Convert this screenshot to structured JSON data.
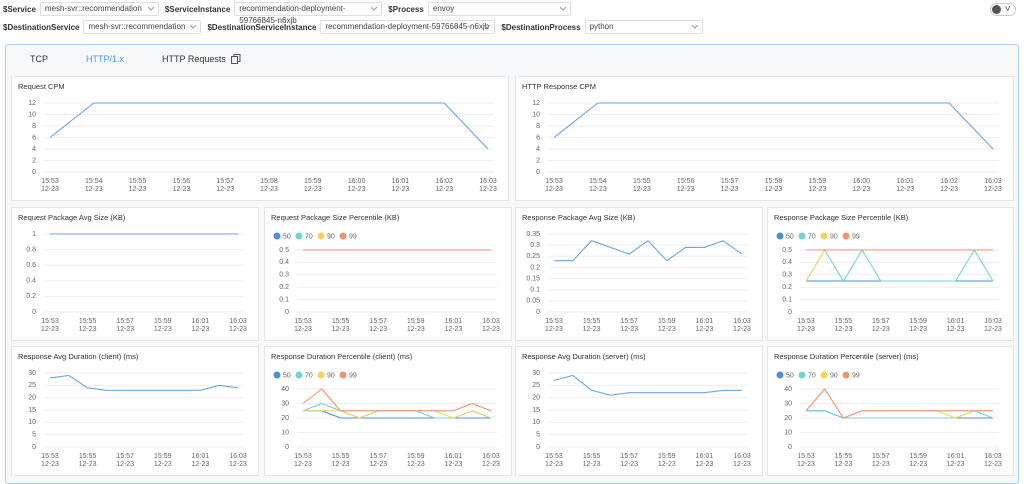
{
  "filters": [
    {
      "label": "$Service",
      "value": "mesh-svr::recommendation"
    },
    {
      "label": "$ServiceInstance",
      "value": "recommendation-deployment-59766845-n6xjb"
    },
    {
      "label": "$Process",
      "value": "envoy"
    },
    {
      "label": "$DestinationService",
      "value": "mesh-svr::recommendation"
    },
    {
      "label": "$DestinationServiceInstance",
      "value": "recommendation-deployment-59766845-n6xjb"
    },
    {
      "label": "$DestinationProcess",
      "value": "python"
    }
  ],
  "toggle": "V",
  "tabs": [
    "TCP",
    "HTTP/1.x",
    "HTTP Requests"
  ],
  "chart_data": [
    {
      "type": "line",
      "title": "Request CPM",
      "categories": [
        "15:53",
        "15:54",
        "15:55",
        "15:56",
        "15:57",
        "15:58",
        "15:59",
        "16:00",
        "16:01",
        "16:02",
        "16:03"
      ],
      "category_sublabels": [
        "12-23",
        "12-23",
        "12-23",
        "12-23",
        "12-23",
        "12-23",
        "12-23",
        "12-23",
        "12-23",
        "12-23",
        "12-23"
      ],
      "series": [
        {
          "name": "Request CPM",
          "color": "#6aa5e0",
          "values": [
            6,
            12,
            12,
            12,
            12,
            12,
            12,
            12,
            12,
            12,
            4
          ]
        }
      ],
      "ylim": [
        0,
        12
      ],
      "yticks": [
        0,
        2,
        4,
        6,
        8,
        10,
        12
      ],
      "grid": true,
      "legend": false
    },
    {
      "type": "line",
      "title": "HTTP Response CPM",
      "categories": [
        "15:53",
        "15:54",
        "15:55",
        "15:56",
        "15:57",
        "15:58",
        "15:59",
        "16:00",
        "16:01",
        "16:02",
        "16:03"
      ],
      "category_sublabels": [
        "12-23",
        "12-23",
        "12-23",
        "12-23",
        "12-23",
        "12-23",
        "12-23",
        "12-23",
        "12-23",
        "12-23",
        "12-23"
      ],
      "series": [
        {
          "name": "HTTP Response CPM",
          "color": "#6aa5e0",
          "values": [
            6,
            12,
            12,
            12,
            12,
            12,
            12,
            12,
            12,
            12,
            4
          ]
        }
      ],
      "ylim": [
        0,
        12
      ],
      "yticks": [
        0,
        2,
        4,
        6,
        8,
        10,
        12
      ],
      "grid": true,
      "legend": false
    },
    {
      "type": "line",
      "title": "Request Package Avg Size (KB)",
      "categories": [
        "15:53",
        null,
        "15:55",
        null,
        "15:57",
        null,
        "15:59",
        null,
        "16:01",
        null,
        "16:03"
      ],
      "category_sublabels": [
        "12-23",
        null,
        "12-23",
        null,
        "12-23",
        null,
        "12-23",
        null,
        "12-23",
        null,
        "12-23"
      ],
      "series": [
        {
          "name": "Request Package Avg Size",
          "color": "#6aa5e0",
          "values": [
            1,
            1,
            1,
            1,
            1,
            1,
            1,
            1,
            1,
            1,
            1
          ]
        }
      ],
      "ylim": [
        0,
        1
      ],
      "yticks": [
        0,
        0.2,
        0.4,
        0.6,
        0.8,
        1
      ],
      "grid": true,
      "legend": false
    },
    {
      "type": "line",
      "title": "Request Package Size Percentile (KB)",
      "categories": [
        "15:53",
        null,
        "15:55",
        null,
        "15:57",
        null,
        "15:59",
        null,
        "16:01",
        null,
        "16:03"
      ],
      "category_sublabels": [
        "12-23",
        null,
        "12-23",
        null,
        "12-23",
        null,
        "12-23",
        null,
        "12-23",
        null,
        "12-23"
      ],
      "series": [
        {
          "name": "50",
          "color": "#4a90d9",
          "values": [
            0.5,
            0.5,
            0.5,
            0.5,
            0.5,
            0.5,
            0.5,
            0.5,
            0.5,
            0.5,
            0.5
          ]
        },
        {
          "name": "70",
          "color": "#72d3d6",
          "values": [
            0.5,
            0.5,
            0.5,
            0.5,
            0.5,
            0.5,
            0.5,
            0.5,
            0.5,
            0.5,
            0.5
          ]
        },
        {
          "name": "90",
          "color": "#f7d35c",
          "values": [
            0.5,
            0.5,
            0.5,
            0.5,
            0.5,
            0.5,
            0.5,
            0.5,
            0.5,
            0.5,
            0.5
          ]
        },
        {
          "name": "99",
          "color": "#ef9274",
          "values": [
            0.5,
            0.5,
            0.5,
            0.5,
            0.5,
            0.5,
            0.5,
            0.5,
            0.5,
            0.5,
            0.5
          ]
        }
      ],
      "ylim": [
        0,
        0.5
      ],
      "yticks": [
        0,
        0.1,
        0.2,
        0.3,
        0.4,
        0.5
      ],
      "grid": true,
      "legend": true
    },
    {
      "type": "line",
      "title": "Response Package Avg Size (KB)",
      "categories": [
        "15:53",
        null,
        "15:55",
        null,
        "15:57",
        null,
        "15:59",
        null,
        "16:01",
        null,
        "16:03"
      ],
      "category_sublabels": [
        "12-23",
        null,
        "12-23",
        null,
        "12-23",
        null,
        "12-23",
        null,
        "12-23",
        null,
        "12-23"
      ],
      "series": [
        {
          "name": "Response Package Avg Size",
          "color": "#6aa5e0",
          "values": [
            0.23,
            0.23,
            0.32,
            0.29,
            0.26,
            0.32,
            0.23,
            0.29,
            0.29,
            0.32,
            0.26
          ]
        }
      ],
      "ylim": [
        0,
        0.35
      ],
      "yticks": [
        0,
        0.05,
        0.1,
        0.15,
        0.2,
        0.25,
        0.3,
        0.35
      ],
      "grid": true,
      "legend": false
    },
    {
      "type": "line",
      "title": "Response Package Size Percentile (KB)",
      "categories": [
        "15:53",
        null,
        "15:55",
        null,
        "15:57",
        null,
        "15:59",
        null,
        "16:01",
        null,
        "16:03"
      ],
      "category_sublabels": [
        "12-23",
        null,
        "12-23",
        null,
        "12-23",
        null,
        "12-23",
        null,
        "12-23",
        null,
        "12-23"
      ],
      "series": [
        {
          "name": "50",
          "color": "#4a90d9",
          "values": [
            0.25,
            0.25,
            0.25,
            0.25,
            0.25,
            0.25,
            0.25,
            0.25,
            0.25,
            0.25,
            0.25
          ]
        },
        {
          "name": "70",
          "color": "#72d3d6",
          "values": [
            0.25,
            0.5,
            0.25,
            0.5,
            0.25,
            0.25,
            0.25,
            0.25,
            0.25,
            0.5,
            0.25
          ]
        },
        {
          "name": "90",
          "color": "#f7d35c",
          "values": [
            0.25,
            0.5,
            0.5,
            0.5,
            0.5,
            0.5,
            0.5,
            0.5,
            0.5,
            0.5,
            0.5
          ]
        },
        {
          "name": "99",
          "color": "#ef9274",
          "values": [
            0.5,
            0.5,
            0.5,
            0.5,
            0.5,
            0.5,
            0.5,
            0.5,
            0.5,
            0.5,
            0.5
          ]
        }
      ],
      "ylim": [
        0,
        0.5
      ],
      "yticks": [
        0,
        0.1,
        0.2,
        0.3,
        0.4,
        0.5
      ],
      "grid": true,
      "legend": true
    },
    {
      "type": "line",
      "title": "Response Avg Duration (client) (ms)",
      "categories": [
        "15:53",
        null,
        "15:55",
        null,
        "15:57",
        null,
        "15:59",
        null,
        "16:01",
        null,
        "16:03"
      ],
      "category_sublabels": [
        "12-23",
        null,
        "12-23",
        null,
        "12-23",
        null,
        "12-23",
        null,
        "12-23",
        null,
        "12-23"
      ],
      "series": [
        {
          "name": "Response Avg Duration (client)",
          "color": "#6aa5e0",
          "values": [
            28,
            29,
            24,
            23,
            23,
            23,
            23,
            23,
            23,
            25,
            24
          ]
        }
      ],
      "ylim": [
        0,
        30
      ],
      "yticks": [
        0,
        5,
        10,
        15,
        20,
        25,
        30
      ],
      "grid": true,
      "legend": false
    },
    {
      "type": "line",
      "title": "Response Duration Percentile (client) (ms)",
      "categories": [
        "15:53",
        null,
        "15:55",
        null,
        "15:57",
        null,
        "15:59",
        null,
        "16:01",
        null,
        "16:03"
      ],
      "category_sublabels": [
        "12-23",
        null,
        "12-23",
        null,
        "12-23",
        null,
        "12-23",
        null,
        "12-23",
        null,
        "12-23"
      ],
      "series": [
        {
          "name": "50",
          "color": "#4a90d9",
          "values": [
            25,
            25,
            20,
            20,
            20,
            20,
            20,
            20,
            20,
            20,
            20
          ]
        },
        {
          "name": "70",
          "color": "#72d3d6",
          "values": [
            25,
            30,
            25,
            20,
            25,
            25,
            25,
            20,
            20,
            25,
            20
          ]
        },
        {
          "name": "90",
          "color": "#f7d35c",
          "values": [
            25,
            25,
            25,
            20,
            25,
            25,
            25,
            25,
            20,
            25,
            20
          ]
        },
        {
          "name": "99",
          "color": "#ef9274",
          "values": [
            30,
            40,
            25,
            25,
            25,
            25,
            25,
            25,
            25,
            30,
            25
          ]
        }
      ],
      "ylim": [
        0,
        40
      ],
      "yticks": [
        0,
        10,
        20,
        30,
        40
      ],
      "grid": true,
      "legend": true
    },
    {
      "type": "line",
      "title": "Response Avg Duration (server) (ms)",
      "categories": [
        "15:53",
        null,
        "15:55",
        null,
        "15:57",
        null,
        "15:59",
        null,
        "16:01",
        null,
        "16:03"
      ],
      "category_sublabels": [
        "12-23",
        null,
        "12-23",
        null,
        "12-23",
        null,
        "12-23",
        null,
        "12-23",
        null,
        "12-23"
      ],
      "series": [
        {
          "name": "Response Avg Duration (server)",
          "color": "#6aa5e0",
          "values": [
            27,
            29,
            23,
            21,
            22,
            22,
            22,
            22,
            22,
            23,
            23
          ]
        }
      ],
      "ylim": [
        0,
        30
      ],
      "yticks": [
        0,
        5,
        10,
        15,
        20,
        25,
        30
      ],
      "grid": true,
      "legend": false
    },
    {
      "type": "line",
      "title": "Response Duration Percentile (server) (ms)",
      "categories": [
        "15:53",
        null,
        "15:55",
        null,
        "15:57",
        null,
        "15:59",
        null,
        "16:01",
        null,
        "16:03"
      ],
      "category_sublabels": [
        "12-23",
        null,
        "12-23",
        null,
        "12-23",
        null,
        "12-23",
        null,
        "12-23",
        null,
        "12-23"
      ],
      "series": [
        {
          "name": "50",
          "color": "#4a90d9",
          "values": [
            25,
            25,
            20,
            20,
            20,
            20,
            20,
            20,
            20,
            20,
            20
          ]
        },
        {
          "name": "70",
          "color": "#72d3d6",
          "values": [
            25,
            25,
            20,
            20,
            20,
            20,
            20,
            20,
            20,
            25,
            20
          ]
        },
        {
          "name": "90",
          "color": "#f7d35c",
          "values": [
            25,
            40,
            20,
            25,
            25,
            25,
            25,
            25,
            20,
            25,
            25
          ]
        },
        {
          "name": "99",
          "color": "#ef9274",
          "values": [
            25,
            40,
            20,
            25,
            25,
            25,
            25,
            25,
            25,
            25,
            25
          ]
        }
      ],
      "ylim": [
        0,
        40
      ],
      "yticks": [
        0,
        10,
        20,
        30,
        40
      ],
      "grid": true,
      "legend": true
    }
  ]
}
